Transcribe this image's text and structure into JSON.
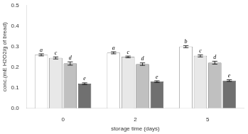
{
  "chart_data": {
    "type": "bar",
    "xlabel": "storage time (days)",
    "ylabel": "conc.(mE H2O2/g of bread)",
    "categories": [
      "0",
      "2",
      "5"
    ],
    "series": [
      {
        "color": "white",
        "values": [
          0.26,
          0.27,
          0.3
        ],
        "errors": [
          0.005,
          0.005,
          0.005
        ],
        "annotations": [
          "a",
          "a",
          "b"
        ]
      },
      {
        "color": "#e8e8e8",
        "values": [
          0.245,
          0.25,
          0.255
        ],
        "errors": [
          0.005,
          0.004,
          0.005
        ],
        "annotations": [
          "c",
          "c",
          "c"
        ]
      },
      {
        "color": "#c0c0c0",
        "values": [
          0.218,
          0.215,
          0.222
        ],
        "errors": [
          0.008,
          0.006,
          0.007
        ],
        "annotations": [
          "d",
          "d",
          "d"
        ]
      },
      {
        "color": "#707070",
        "values": [
          0.12,
          0.13,
          0.135
        ],
        "errors": [
          0.004,
          0.004,
          0.004
        ],
        "annotations": [
          "e",
          "e",
          "e"
        ]
      }
    ],
    "ylim": [
      0,
      0.5
    ],
    "yticks": [
      {
        "value": 0,
        "label": "0.0"
      },
      0.1,
      0.2,
      0.3,
      0.4,
      0.5
    ],
    "grid": false
  }
}
